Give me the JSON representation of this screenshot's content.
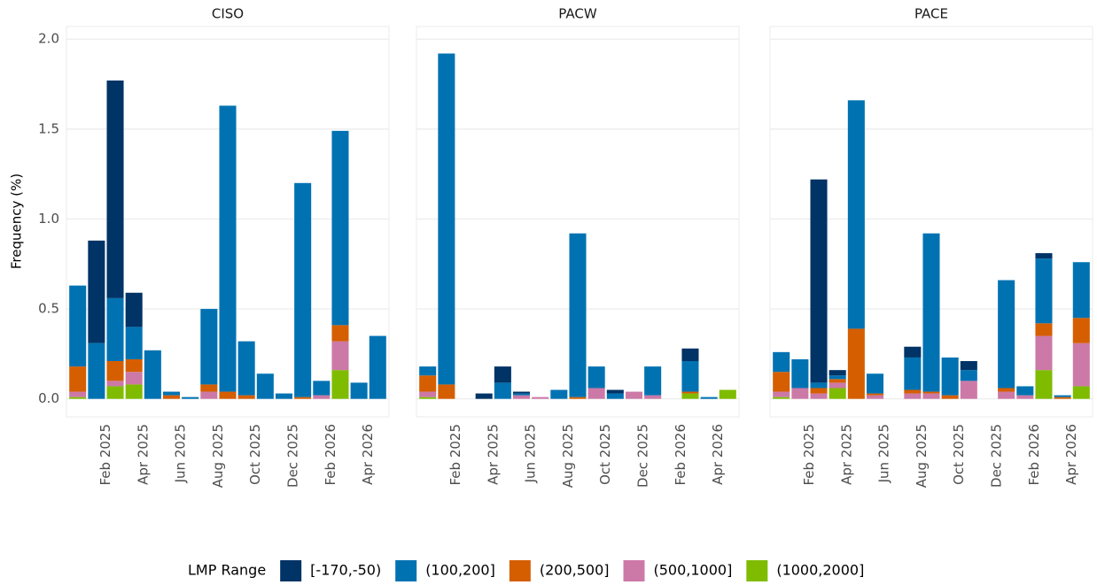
{
  "chart_data": {
    "type": "bar",
    "stacked": true,
    "ylabel": "Frequency (%)",
    "legend_title": "LMP Range",
    "grid": true,
    "ylim": [
      -0.1,
      2.07
    ],
    "yticks": [
      {
        "value": 0,
        "label": "0.0"
      },
      0.5,
      {
        "value": 1,
        "label": "1.0"
      },
      1.5,
      {
        "value": 2,
        "label": "2.0"
      }
    ],
    "categories": [
      null,
      null,
      "Feb 2025",
      null,
      "Apr 2025",
      null,
      "Jun 2025",
      null,
      "Aug 2025",
      null,
      "Oct 2025",
      null,
      "Dec 2025",
      null,
      "Feb 2026",
      null,
      "Apr 2026"
    ],
    "series": [
      {
        "name": "(1000,2000]",
        "color": "#7fbc00"
      },
      {
        "name": "(500,1000]",
        "color": "#cc79a7"
      },
      {
        "name": "(200,500]",
        "color": "#d55e00"
      },
      {
        "name": "(100,200]",
        "color": "#0072b2"
      },
      {
        "name": "[-170,-50)",
        "color": "#003366"
      }
    ],
    "legend_order": [
      4,
      3,
      2,
      1,
      0
    ],
    "facets": [
      {
        "title": "CISO",
        "values": [
          [
            0.01,
            0,
            0.07,
            0.08,
            0,
            0,
            0,
            0,
            0,
            0,
            0,
            0,
            0,
            0,
            0.16,
            0,
            0
          ],
          [
            0.03,
            0,
            0.03,
            0.07,
            0,
            0,
            0,
            0.04,
            0,
            0,
            0,
            0,
            0,
            0.02,
            0.16,
            0,
            0
          ],
          [
            0.14,
            0,
            0.11,
            0.07,
            0,
            0.02,
            0,
            0.04,
            0.04,
            0.02,
            0,
            0,
            0.01,
            0,
            0.09,
            0,
            0
          ],
          [
            0.45,
            0.31,
            0.35,
            0.18,
            0.27,
            0.02,
            0.01,
            0.42,
            1.59,
            0.3,
            0.14,
            0.03,
            1.19,
            0.08,
            1.08,
            0.09,
            0.35
          ],
          [
            0,
            0.57,
            1.21,
            0.19,
            0,
            0,
            0,
            0,
            0,
            0,
            0,
            0,
            0,
            0,
            0,
            0,
            0
          ]
        ]
      },
      {
        "title": "PACW",
        "values": [
          [
            0.01,
            0,
            0,
            0,
            0,
            0,
            0,
            0,
            0,
            0,
            0,
            0,
            0,
            0,
            0.03,
            0,
            0.05
          ],
          [
            0.03,
            0,
            0,
            0,
            0,
            0.02,
            0.01,
            0,
            0,
            0.06,
            0,
            0.04,
            0.02,
            0,
            0,
            0,
            0
          ],
          [
            0.09,
            0.08,
            0,
            0,
            0,
            0,
            0,
            0,
            0.01,
            0,
            0,
            0,
            0,
            0,
            0.01,
            0,
            0
          ],
          [
            0.05,
            1.84,
            0,
            0,
            0.09,
            0.01,
            0,
            0.05,
            0.91,
            0.12,
            0.03,
            0,
            0.16,
            0,
            0.17,
            0.01,
            0
          ],
          [
            0,
            0,
            0,
            0.03,
            0.09,
            0.01,
            0,
            0,
            0,
            0,
            0.02,
            0,
            0,
            0,
            0.07,
            0,
            0
          ]
        ]
      },
      {
        "title": "PACE",
        "values": [
          [
            0.01,
            0,
            0,
            0.06,
            0,
            0,
            0,
            0,
            0,
            0,
            0,
            0,
            0,
            0,
            0.16,
            0,
            0.07
          ],
          [
            0.03,
            0.06,
            0.03,
            0.03,
            0,
            0.02,
            0,
            0.03,
            0.03,
            0,
            0.1,
            0,
            0.04,
            0.02,
            0.19,
            0,
            0.24
          ],
          [
            0.11,
            0,
            0.03,
            0.02,
            0.39,
            0.01,
            0,
            0.02,
            0.01,
            0.02,
            0,
            0,
            0.02,
            0,
            0.07,
            0.01,
            0.14
          ],
          [
            0.11,
            0.16,
            0.03,
            0.02,
            1.27,
            0.11,
            0,
            0.18,
            0.88,
            0.21,
            0.06,
            0,
            0.6,
            0.05,
            0.36,
            0.01,
            0.31
          ],
          [
            0,
            0,
            1.13,
            0.03,
            0,
            0,
            0,
            0.06,
            0,
            0,
            0.05,
            0,
            0,
            0,
            0.03,
            0,
            0
          ]
        ]
      }
    ]
  }
}
